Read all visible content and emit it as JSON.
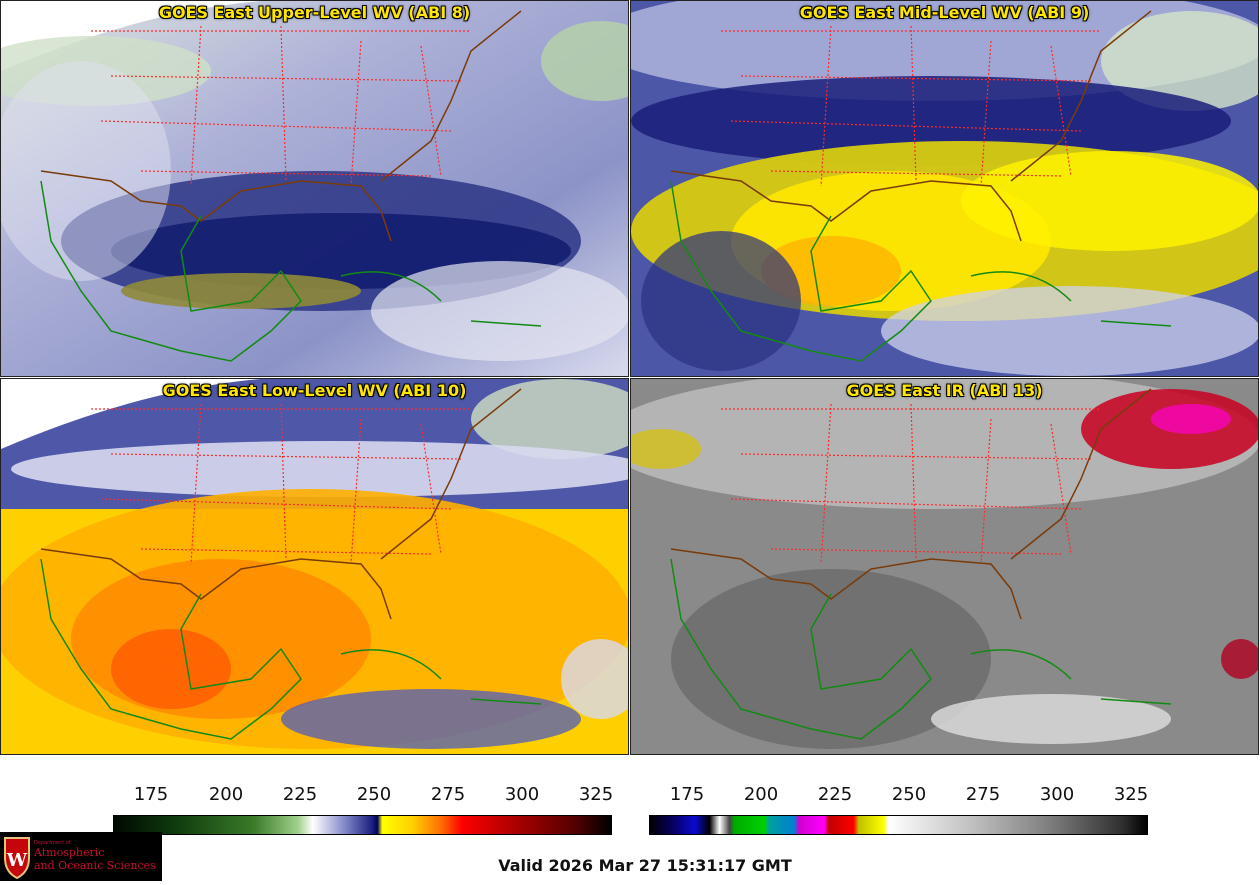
{
  "panels": {
    "upper": {
      "title": "GOES East Upper-Level WV (ABI 8)"
    },
    "mid": {
      "title": "GOES East Mid-Level WV (ABI 9)"
    },
    "low": {
      "title": "GOES East Low-Level WV (ABI 10)"
    },
    "ir": {
      "title": "GOES East IR (ABI 13)"
    }
  },
  "colorbars": {
    "wv": {
      "ticks": [
        "175",
        "200",
        "225",
        "250",
        "275",
        "300",
        "325"
      ]
    },
    "ir": {
      "ticks": [
        "175",
        "200",
        "225",
        "250",
        "275",
        "300",
        "325"
      ]
    }
  },
  "logo": {
    "dept": "Department of",
    "line1": "Atmospheric",
    "line2": "and Oceanic Sciences",
    "letter": "W"
  },
  "footer": {
    "valid": "Valid 2026 Mar 27 15:31:17 GMT"
  },
  "colors": {
    "title": "#ffe600",
    "state_lines": "#ff2a2a",
    "coast": "#138a13",
    "border": "#7a3b0a"
  }
}
